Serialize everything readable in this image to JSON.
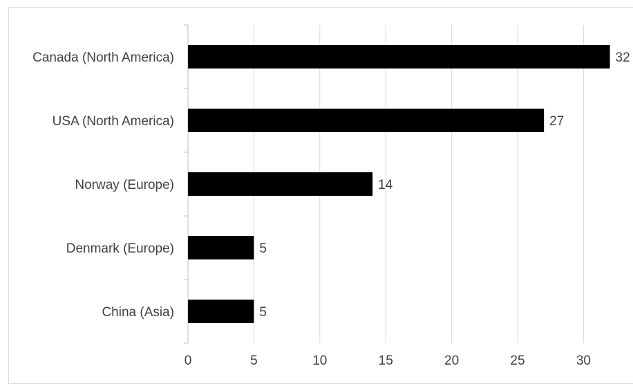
{
  "chart_data": {
    "type": "bar",
    "orientation": "horizontal",
    "categories": [
      "Canada (North America)",
      "USA (North America)",
      "Norway (Europe)",
      "Denmark (Europe)",
      "China (Asia)"
    ],
    "values": [
      32,
      27,
      14,
      5,
      5
    ],
    "data_labels": [
      "32",
      "27",
      "14",
      "5",
      "5"
    ],
    "x_ticks": [
      "0",
      "5",
      "10",
      "15",
      "20",
      "25",
      "30"
    ],
    "xlim": [
      0,
      32
    ],
    "title": "",
    "xlabel": "",
    "ylabel": "",
    "grid": "vertical",
    "legend": "none",
    "colors": {
      "bar": "#000000",
      "grid": "#d9d9d9",
      "axis": "#bfbfbf",
      "text": "#404040"
    }
  }
}
